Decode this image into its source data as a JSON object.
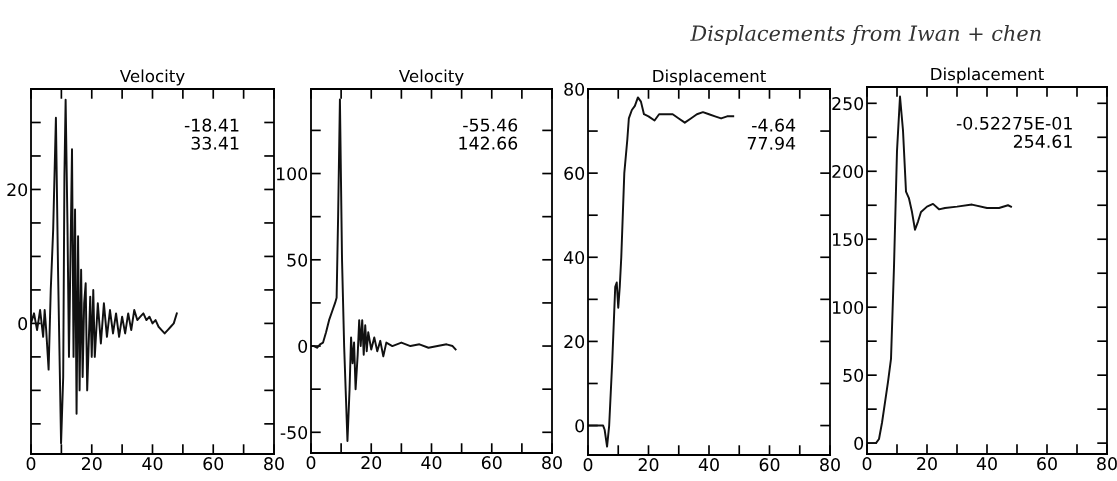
{
  "chart_data": [
    {
      "type": "line",
      "title": "Velocity",
      "annotations": [
        "-18.41",
        "33.41"
      ],
      "x": [
        0,
        1,
        2,
        3,
        4,
        4.5,
        5,
        5.8,
        6.5,
        7.3,
        8.2,
        8.9,
        9.9,
        10.6,
        11.0,
        11.4,
        12.0,
        12.5,
        13.0,
        13.5,
        14.0,
        14.5,
        15.0,
        15.5,
        16.0,
        16.5,
        17.0,
        17.5,
        18.0,
        18.5,
        19.5,
        20.0,
        20.5,
        21.0,
        22.0,
        23.0,
        24.0,
        25.0,
        26.0,
        27.0,
        28.0,
        29.0,
        30.0,
        31.0,
        32.0,
        33.0,
        34.0,
        35.0,
        36.0,
        37.0,
        38.0,
        39.0,
        40.0,
        41.0,
        42.0,
        43.0,
        44.0,
        45.0,
        46.0,
        47.0,
        48.0
      ],
      "series": [
        {
          "color": "#111111",
          "values": [
            0,
            1.5,
            -1,
            2,
            -2,
            2,
            -1,
            -6.9,
            5,
            14,
            30.7,
            8,
            -17.9,
            -8,
            22,
            33.4,
            15,
            -5,
            10,
            26,
            -5,
            17,
            -13.5,
            13,
            -10,
            8,
            -8,
            3,
            6,
            -10,
            4,
            -5,
            5,
            -5,
            3,
            -3,
            3,
            -2,
            2,
            -1.5,
            1.5,
            -2,
            1,
            -1.5,
            1.5,
            -1,
            2,
            0.5,
            1,
            1.5,
            0.5,
            1,
            0,
            0.5,
            -0.5,
            -1,
            -1.5,
            -1,
            -0.5,
            0,
            1.5
          ]
        }
      ],
      "xlim": [
        0,
        80
      ],
      "ylim": [
        -19.5,
        35
      ],
      "xticks": [
        0,
        {
          "value": 10,
          "label": null
        },
        20,
        {
          "value": 30,
          "label": null
        },
        40,
        {
          "value": 50,
          "label": null
        },
        60,
        {
          "value": 70,
          "label": null
        },
        80
      ],
      "yticks": [
        {
          "value": -15,
          "label": null
        },
        {
          "value": -10,
          "label": null
        },
        {
          "value": -5,
          "label": null
        },
        0,
        {
          "value": 5,
          "label": null
        },
        {
          "value": 10,
          "label": null
        },
        {
          "value": 15,
          "label": null
        },
        20,
        {
          "value": 25,
          "label": null
        },
        {
          "value": 30,
          "label": null
        }
      ]
    },
    {
      "type": "line",
      "title": "Velocity",
      "annotations": [
        "-55.46",
        "142.66"
      ],
      "x": [
        0,
        1,
        2,
        3,
        4,
        5,
        6,
        7,
        8,
        8.5,
        9,
        9.6,
        10.3,
        11,
        11.6,
        12.1,
        12.8,
        13.3,
        13.8,
        14.3,
        14.8,
        15.5,
        16,
        16.5,
        17,
        17.5,
        18,
        18.5,
        19,
        20,
        21,
        22,
        23,
        24,
        25,
        27,
        30,
        33,
        36,
        39,
        42,
        45,
        47,
        48
      ],
      "series": [
        {
          "color": "#111111",
          "values": [
            0,
            0,
            -1,
            1,
            2,
            8,
            15,
            20,
            25,
            28,
            75,
            143,
            50,
            0,
            -30,
            -55,
            -25,
            5,
            -10,
            2,
            -25,
            -5,
            15,
            0,
            15,
            -5,
            12,
            -3,
            8,
            -2,
            5,
            -3,
            3,
            -6,
            2,
            0,
            2,
            0,
            1,
            -1,
            0,
            1,
            0,
            -2
          ]
        }
      ],
      "xlim": [
        0,
        80
      ],
      "ylim": [
        -62,
        149
      ],
      "xticks": [
        0,
        {
          "value": 10,
          "label": null
        },
        20,
        {
          "value": 30,
          "label": null
        },
        40,
        {
          "value": 50,
          "label": null
        },
        60,
        {
          "value": 70,
          "label": null
        },
        80
      ],
      "yticks": [
        -50,
        {
          "value": -25,
          "label": null
        },
        0,
        {
          "value": 25,
          "label": null
        },
        50,
        {
          "value": 75,
          "label": null
        },
        100,
        {
          "value": 125,
          "label": null
        }
      ]
    },
    {
      "type": "line",
      "title": "Displacement",
      "annotations": [
        "-4.64",
        "77.94",
        "Displacements from Iwan + chen"
      ],
      "x": [
        0,
        2,
        4,
        5,
        5.5,
        6.3,
        7,
        8,
        9,
        9.5,
        10,
        10.5,
        11,
        12,
        13,
        13.5,
        14.5,
        15.5,
        16.5,
        17.5,
        18.5,
        20,
        22,
        23.5,
        26,
        28,
        30,
        32,
        34,
        36,
        38,
        40,
        42,
        44,
        46,
        48
      ],
      "series": [
        {
          "color": "#111111",
          "values": [
            0,
            0,
            0,
            0,
            -1,
            -5,
            0,
            15,
            33,
            34,
            28,
            33,
            40,
            60,
            68,
            73,
            75,
            76,
            78,
            77,
            74,
            73.5,
            72.5,
            74,
            74,
            74,
            73,
            72,
            73,
            74,
            74.5,
            74,
            73.5,
            73,
            73.5,
            73.5
          ]
        }
      ],
      "xlim": [
        0,
        80
      ],
      "ylim": [
        -7,
        80
      ],
      "xticks": [
        0,
        {
          "value": 10,
          "label": null
        },
        20,
        {
          "value": 30,
          "label": null
        },
        40,
        {
          "value": 50,
          "label": null
        },
        60,
        {
          "value": 70,
          "label": null
        },
        80
      ],
      "yticks": [
        0,
        {
          "value": 10,
          "label": null
        },
        20,
        {
          "value": 30,
          "label": null
        },
        40,
        {
          "value": 50,
          "label": null
        },
        60,
        {
          "value": 70,
          "label": null
        },
        80
      ]
    },
    {
      "type": "line",
      "title": "Displacement",
      "annotations": [
        "-0.52275E-01",
        "254.61"
      ],
      "x": [
        0,
        1,
        2,
        3,
        4,
        5,
        6,
        7,
        8,
        9,
        10,
        11,
        12,
        13,
        14,
        15,
        16,
        17,
        18,
        20,
        22,
        24,
        26,
        30,
        35,
        40,
        44,
        47,
        48
      ],
      "series": [
        {
          "color": "#111111",
          "values": [
            0,
            0,
            0,
            0,
            3,
            15,
            30,
            45,
            62,
            130,
            215,
            255,
            230,
            185,
            180,
            170,
            157,
            163,
            170,
            174,
            176,
            172,
            173,
            174,
            175.5,
            173,
            173,
            175,
            174
          ]
        }
      ],
      "xlim": [
        0,
        80
      ],
      "ylim": [
        -8,
        262
      ],
      "xticks": [
        0,
        {
          "value": 10,
          "label": null
        },
        20,
        {
          "value": 30,
          "label": null
        },
        40,
        {
          "value": 50,
          "label": null
        },
        60,
        {
          "value": 70,
          "label": null
        },
        80
      ],
      "yticks": [
        0,
        {
          "value": 25,
          "label": null
        },
        50,
        {
          "value": 75,
          "label": null
        },
        100,
        {
          "value": 125,
          "label": null
        },
        150,
        {
          "value": 175,
          "label": null
        },
        200,
        {
          "value": 225,
          "label": null
        },
        250
      ]
    }
  ]
}
